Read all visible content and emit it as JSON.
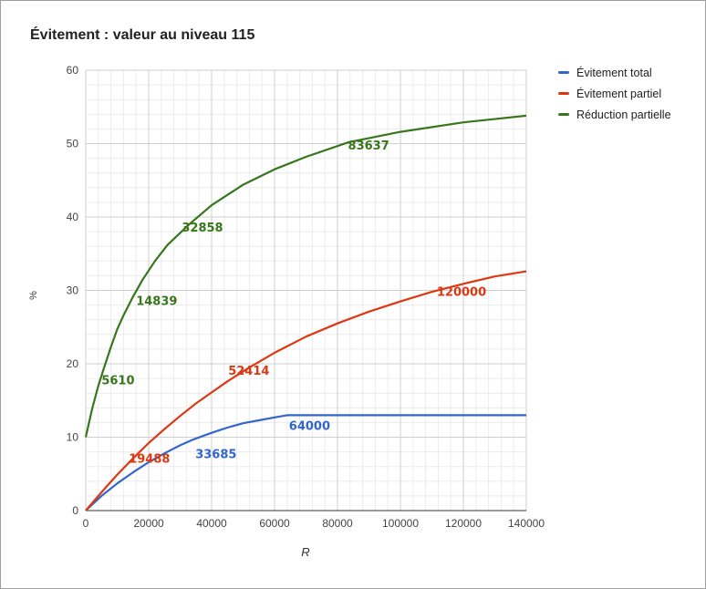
{
  "chart_data": {
    "type": "line",
    "title": "Évitement : valeur au niveau 115",
    "xlabel": "R",
    "ylabel": "%",
    "xlim": [
      0,
      140000
    ],
    "ylim": [
      0,
      60
    ],
    "x_ticks": [
      "0",
      "20000",
      "40000",
      "60000",
      "80000",
      "100000",
      "120000",
      "140000"
    ],
    "y_ticks": [
      "0",
      "10",
      "20",
      "30",
      "40",
      "50",
      "60"
    ],
    "grid": true,
    "legend_position": "right",
    "series": [
      {
        "name": "Évitement total",
        "color": "#3366cc",
        "points": [
          [
            0,
            0
          ],
          [
            5000,
            2.0
          ],
          [
            10000,
            3.7
          ],
          [
            15000,
            5.2
          ],
          [
            20000,
            6.6
          ],
          [
            25000,
            7.8
          ],
          [
            30000,
            8.9
          ],
          [
            33685,
            9.6
          ],
          [
            40000,
            10.6
          ],
          [
            45000,
            11.3
          ],
          [
            50000,
            11.9
          ],
          [
            55000,
            12.3
          ],
          [
            60000,
            12.7
          ],
          [
            64000,
            13.0
          ],
          [
            80000,
            13.0
          ],
          [
            100000,
            13.0
          ],
          [
            120000,
            13.0
          ],
          [
            140000,
            13.0
          ]
        ],
        "labels": [
          {
            "x": 33685,
            "y": 9.6,
            "text": "33685"
          },
          {
            "x": 64000,
            "y": 13.0,
            "text": "64000"
          }
        ]
      },
      {
        "name": "Évitement partiel",
        "color": "#dc3912",
        "points": [
          [
            0,
            0
          ],
          [
            5000,
            2.5
          ],
          [
            10000,
            4.9
          ],
          [
            15000,
            7.1
          ],
          [
            19488,
            9.0
          ],
          [
            25000,
            11.1
          ],
          [
            30000,
            12.9
          ],
          [
            35000,
            14.6
          ],
          [
            40000,
            16.1
          ],
          [
            45000,
            17.6
          ],
          [
            52414,
            19.6
          ],
          [
            60000,
            21.5
          ],
          [
            70000,
            23.7
          ],
          [
            80000,
            25.5
          ],
          [
            90000,
            27.1
          ],
          [
            100000,
            28.5
          ],
          [
            110000,
            29.8
          ],
          [
            120000,
            30.9
          ],
          [
            130000,
            31.9
          ],
          [
            140000,
            32.6
          ]
        ],
        "labels": [
          {
            "x": 19488,
            "y": 9.0,
            "text": "19488"
          },
          {
            "x": 52414,
            "y": 19.6,
            "text": "52414"
          },
          {
            "x": 120000,
            "y": 30.9,
            "text": "120000"
          }
        ]
      },
      {
        "name": "Réduction partielle",
        "color": "#38761d",
        "points": [
          [
            0,
            10
          ],
          [
            2000,
            13.8
          ],
          [
            4000,
            17.0
          ],
          [
            5610,
            19.2
          ],
          [
            8000,
            22.3
          ],
          [
            10000,
            24.7
          ],
          [
            12000,
            26.6
          ],
          [
            14839,
            29.0
          ],
          [
            18000,
            31.4
          ],
          [
            22000,
            34.0
          ],
          [
            26000,
            36.2
          ],
          [
            32858,
            39.0
          ],
          [
            40000,
            41.6
          ],
          [
            50000,
            44.4
          ],
          [
            60000,
            46.5
          ],
          [
            70000,
            48.2
          ],
          [
            83637,
            50.2
          ],
          [
            100000,
            51.6
          ],
          [
            120000,
            52.9
          ],
          [
            140000,
            53.8
          ]
        ],
        "labels": [
          {
            "x": 5610,
            "y": 19.2,
            "text": "5610"
          },
          {
            "x": 14839,
            "y": 29.0,
            "text": "14839"
          },
          {
            "x": 32858,
            "y": 39.0,
            "text": "32858"
          },
          {
            "x": 83637,
            "y": 50.2,
            "text": "83637"
          }
        ]
      }
    ]
  }
}
